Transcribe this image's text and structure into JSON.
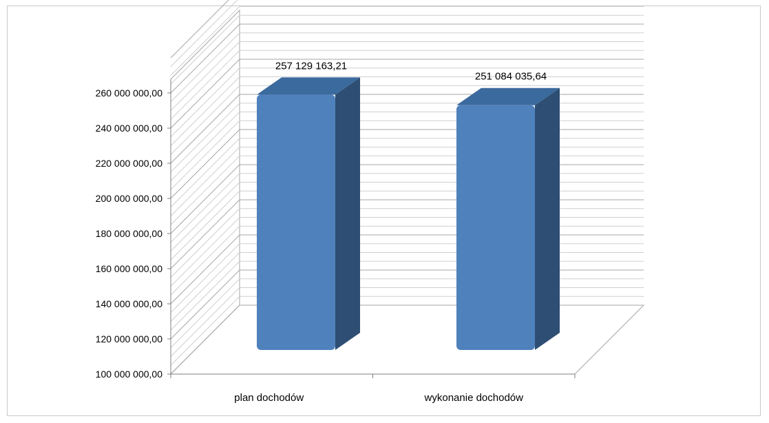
{
  "chart_data": {
    "type": "bar",
    "style": "3d-column",
    "categories": [
      "plan dochodów",
      "wykonanie dochodów"
    ],
    "values": [
      257129163.21,
      251084035.64
    ],
    "value_labels": [
      "257 129 163,21",
      "251 084 035,64"
    ],
    "y_ticks": [
      "100 000 000,00",
      "120 000 000,00",
      "140 000 000,00",
      "160 000 000,00",
      "180 000 000,00",
      "200 000 000,00",
      "220 000 000,00",
      "240 000 000,00",
      "260 000 000,00"
    ],
    "ylim": [
      100000000,
      260000000
    ],
    "title": "",
    "xlabel": "",
    "ylabel": "",
    "grid": true,
    "legend": "none",
    "colors": {
      "front": "#4f81bd",
      "side": "#2e4f73",
      "top": "#3b6a9e",
      "grid": "#a6a6a6",
      "axis": "#7f7f7f"
    }
  }
}
